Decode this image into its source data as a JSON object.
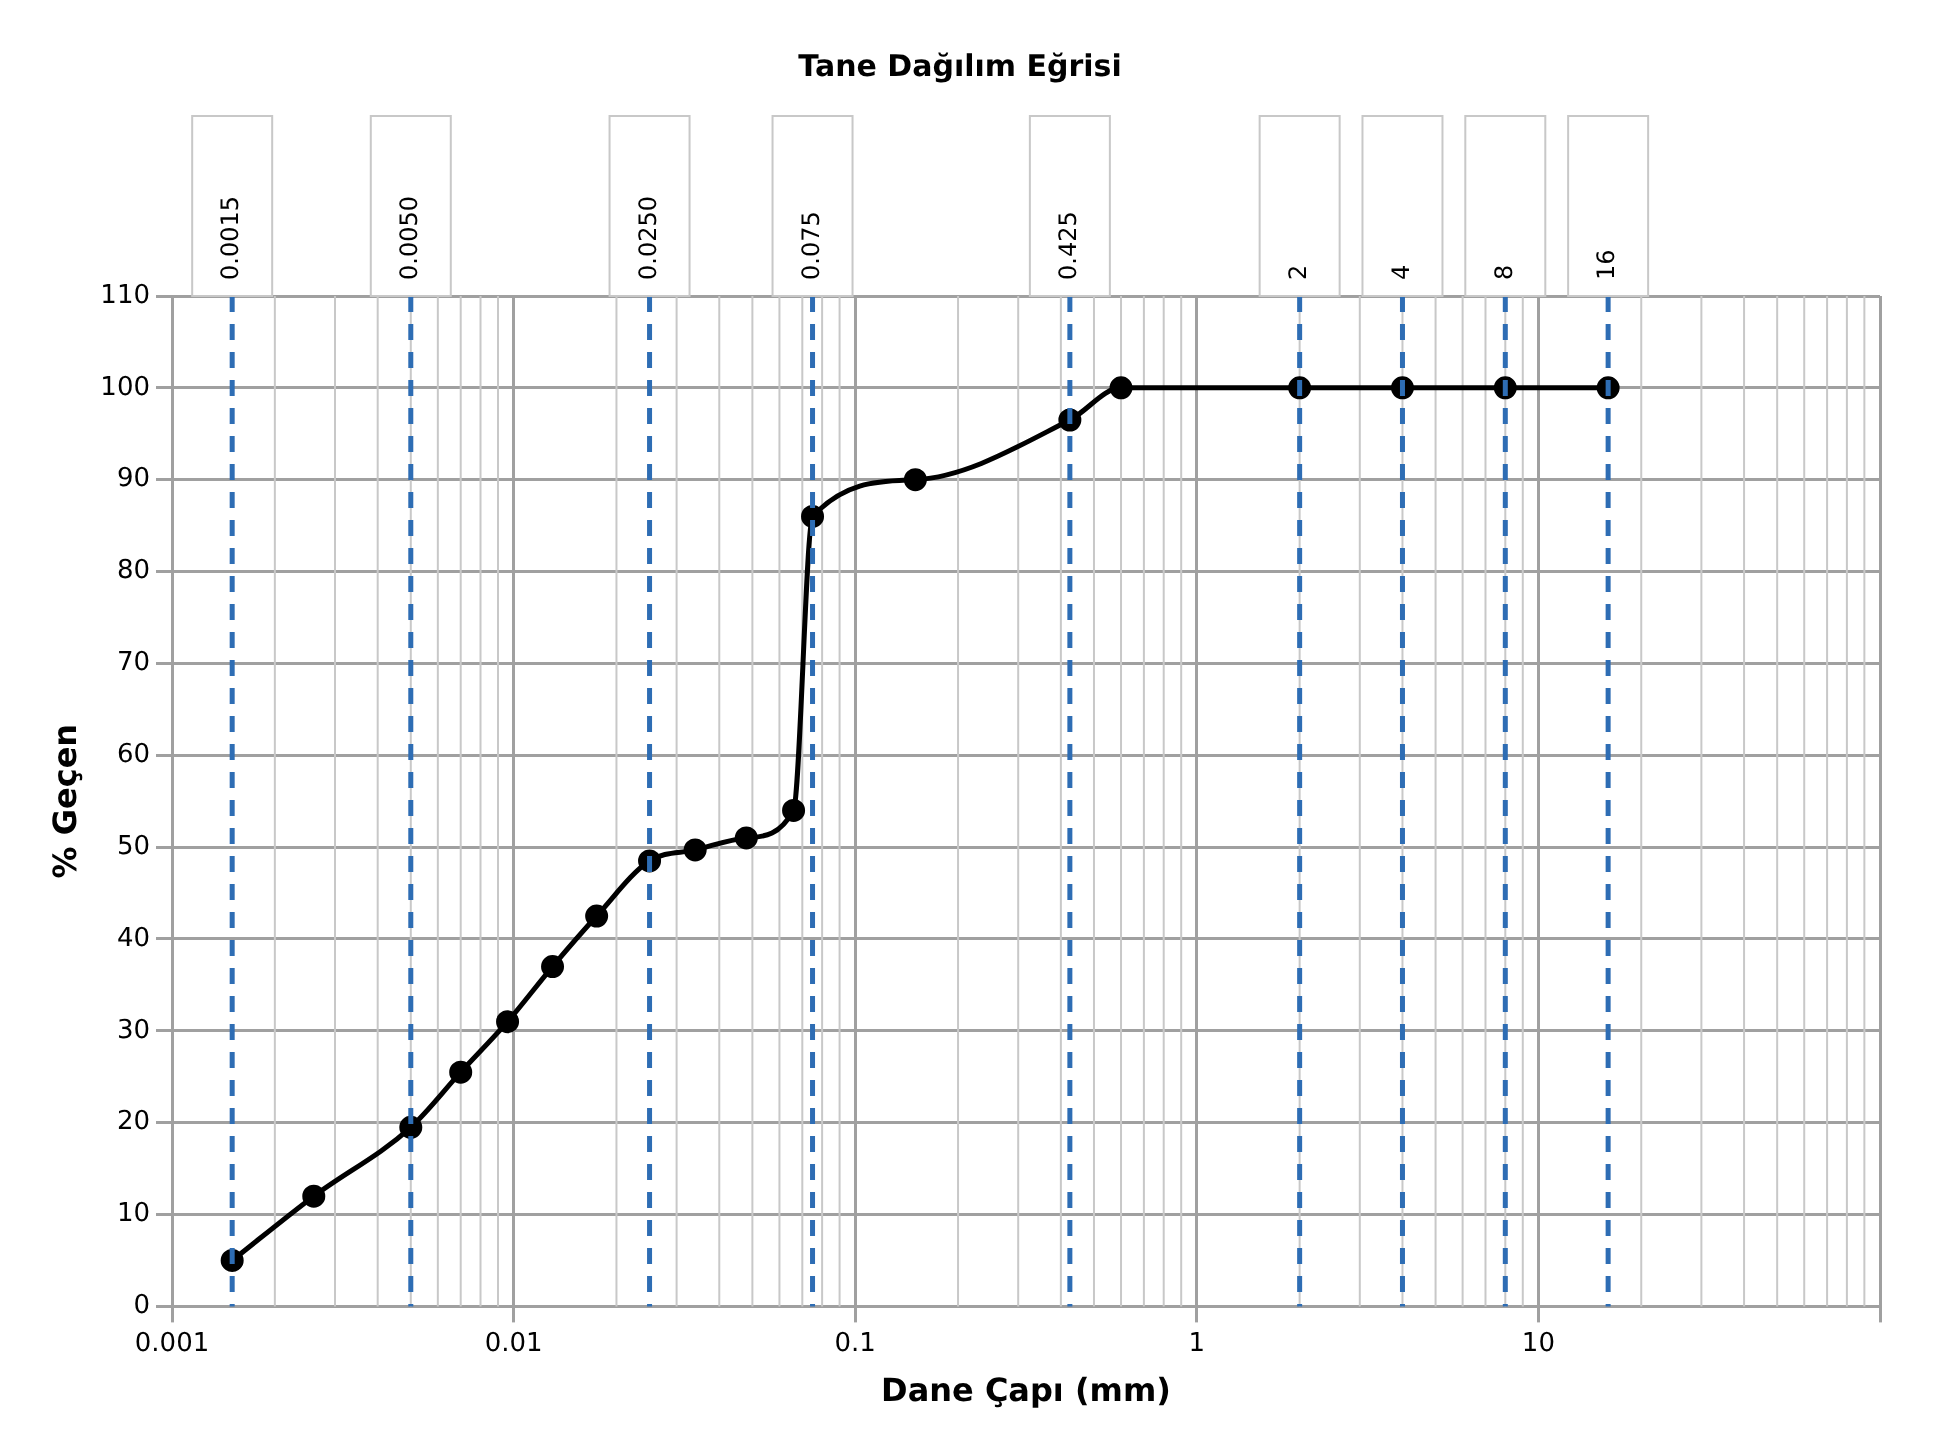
{
  "chart_data": {
    "type": "line",
    "title": "Tane Dağılım Eğrisi",
    "xlabel": "Dane Çapı (mm)",
    "ylabel": "% Geçen",
    "x": [
      0.0015,
      0.0026,
      0.005,
      0.007,
      0.0096,
      0.013,
      0.0175,
      0.025,
      0.034,
      0.048,
      0.066,
      0.075,
      0.15,
      0.425,
      0.6,
      2,
      4,
      8,
      16
    ],
    "series": [
      {
        "color": "#000000",
        "values": [
          5,
          12,
          19.5,
          25.5,
          31,
          37,
          42.5,
          48.5,
          49.7,
          51,
          54,
          86,
          90,
          96.5,
          100,
          100,
          100,
          100,
          100
        ]
      }
    ],
    "log": "x",
    "xlim": [
      0.001,
      100
    ],
    "xticks": [
      0.001,
      0.01,
      0.1,
      1,
      10,
      {
        "value": 100,
        "label": null
      }
    ],
    "ylim": [
      0,
      110
    ],
    "yticks": [
      0,
      10,
      20,
      30,
      40,
      50,
      60,
      70,
      80,
      90,
      100,
      110
    ],
    "grid": true,
    "legend": false,
    "marker": "circle",
    "line_style": "solid",
    "ref_lines": [
      {
        "axis": "x",
        "value": 0.0015,
        "label": "0.0015",
        "color": "#2e6db4",
        "line_style": "dashed"
      },
      {
        "axis": "x",
        "value": 0.005,
        "label": "0.0050",
        "color": "#2e6db4",
        "line_style": "dashed"
      },
      {
        "axis": "x",
        "value": 0.025,
        "label": "0.0250",
        "color": "#2e6db4",
        "line_style": "dashed"
      },
      {
        "axis": "x",
        "value": 0.075,
        "label": "0.075",
        "color": "#2e6db4",
        "line_style": "dashed"
      },
      {
        "axis": "x",
        "value": 0.425,
        "label": "0.425",
        "color": "#2e6db4",
        "line_style": "dashed"
      },
      {
        "axis": "x",
        "value": 2,
        "label": "2",
        "color": "#2e6db4",
        "line_style": "dashed"
      },
      {
        "axis": "x",
        "value": 4,
        "label": "4",
        "color": "#2e6db4",
        "line_style": "dashed"
      },
      {
        "axis": "x",
        "value": 8,
        "label": "8",
        "color": "#2e6db4",
        "line_style": "dashed"
      },
      {
        "axis": "x",
        "value": 16,
        "label": "16",
        "color": "#2e6db4",
        "line_style": "dashed"
      }
    ]
  }
}
